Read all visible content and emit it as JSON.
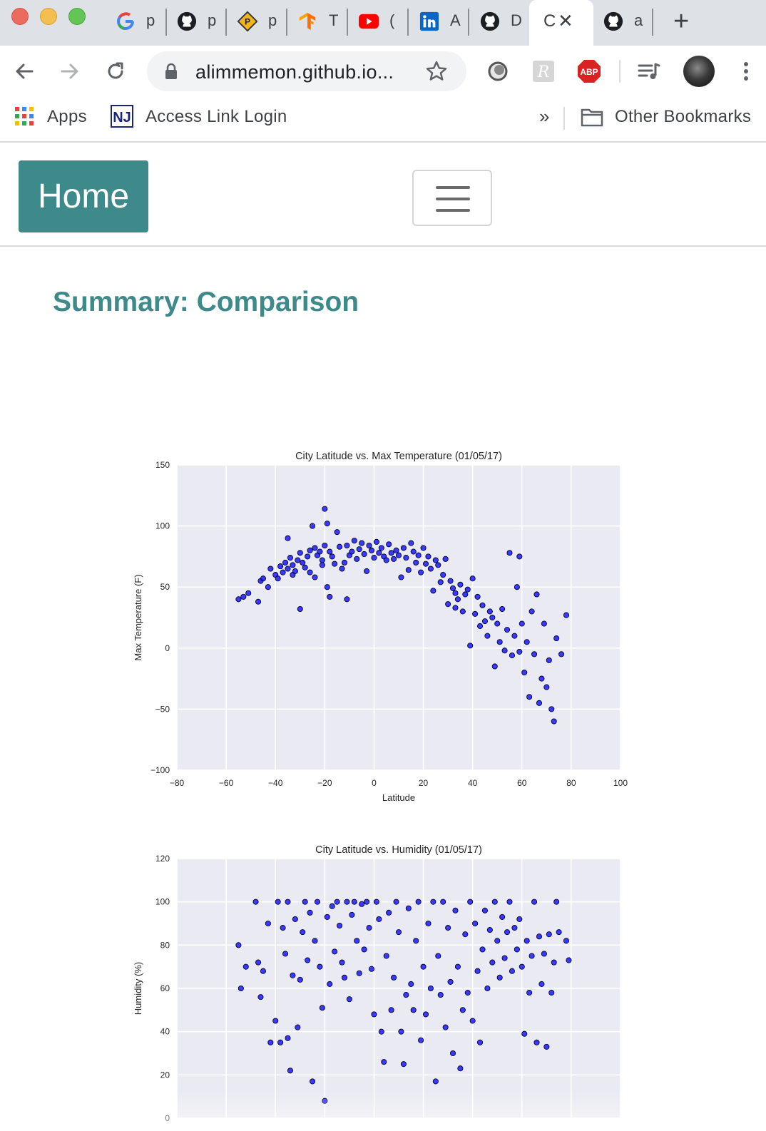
{
  "browser": {
    "tabs": [
      {
        "favicon": "google-icon",
        "title": "p"
      },
      {
        "favicon": "github-icon",
        "title": "p"
      },
      {
        "favicon": "parking-icon",
        "title": "p"
      },
      {
        "favicon": "tensorflow-icon",
        "title": "T"
      },
      {
        "favicon": "youtube-icon",
        "title": "("
      },
      {
        "favicon": "linkedin-icon",
        "title": "A"
      },
      {
        "favicon": "github-icon",
        "title": "D"
      },
      {
        "favicon": "none",
        "title": "C",
        "active": true
      },
      {
        "favicon": "github-icon",
        "title": "a"
      }
    ],
    "close_glyph": "✕",
    "new_tab_glyph": "+",
    "address": "alimmemon.github.io...",
    "extensions": [
      "circle-extension-icon",
      "r-extension-icon",
      "adblock-plus-icon",
      "media-control-icon",
      "profile-avatar",
      "menu-icon"
    ],
    "adblock_label": "ABP",
    "bookmarks": {
      "apps": "Apps",
      "access_link": "Access Link Login",
      "overflow": "»",
      "other": "Other Bookmarks"
    }
  },
  "navbar": {
    "home_label": "Home"
  },
  "page": {
    "title": "Summary: Comparison"
  },
  "colors": {
    "accent": "#3e8a8a",
    "plot_bg": "#eaeaf2",
    "point_fill": "#1a1aff",
    "point_edge": "#000033"
  },
  "chart_data": [
    {
      "type": "scatter",
      "title": "City Latitude vs. Max Temperature (01/05/17)",
      "xlabel": "Latitude",
      "ylabel": "Max Temperature (F)",
      "xlim": [
        -80,
        100
      ],
      "ylim": [
        -100,
        150
      ],
      "xticks": [
        -80,
        -60,
        -40,
        -20,
        0,
        20,
        40,
        60,
        80,
        100
      ],
      "yticks": [
        -100,
        -50,
        0,
        50,
        100,
        150
      ],
      "grid": true,
      "points": [
        [
          -55,
          40
        ],
        [
          -53,
          42
        ],
        [
          -51,
          45
        ],
        [
          -47,
          38
        ],
        [
          -46,
          55
        ],
        [
          -45,
          57
        ],
        [
          -43,
          50
        ],
        [
          -42,
          65
        ],
        [
          -40,
          60
        ],
        [
          -39,
          57
        ],
        [
          -38,
          67
        ],
        [
          -37,
          62
        ],
        [
          -36,
          70
        ],
        [
          -35,
          65
        ],
        [
          -35,
          90
        ],
        [
          -34,
          74
        ],
        [
          -33,
          68
        ],
        [
          -33,
          60
        ],
        [
          -32,
          63
        ],
        [
          -31,
          72
        ],
        [
          -30,
          32
        ],
        [
          -30,
          78
        ],
        [
          -29,
          70
        ],
        [
          -28,
          66
        ],
        [
          -27,
          75
        ],
        [
          -26,
          80
        ],
        [
          -26,
          62
        ],
        [
          -25,
          100
        ],
        [
          -24,
          82
        ],
        [
          -24,
          58
        ],
        [
          -23,
          76
        ],
        [
          -22,
          79
        ],
        [
          -21,
          72
        ],
        [
          -21,
          68
        ],
        [
          -20,
          84
        ],
        [
          -20,
          114
        ],
        [
          -19,
          102
        ],
        [
          -19,
          50
        ],
        [
          -18,
          42
        ],
        [
          -18,
          79
        ],
        [
          -17,
          75
        ],
        [
          -16,
          69
        ],
        [
          -15,
          95
        ],
        [
          -14,
          83
        ],
        [
          -13,
          65
        ],
        [
          -12,
          70
        ],
        [
          -11,
          84
        ],
        [
          -11,
          40
        ],
        [
          -10,
          76
        ],
        [
          -9,
          79
        ],
        [
          -8,
          88
        ],
        [
          -7,
          73
        ],
        [
          -6,
          81
        ],
        [
          -5,
          86
        ],
        [
          -4,
          77
        ],
        [
          -3,
          63
        ],
        [
          -2,
          84
        ],
        [
          -1,
          80
        ],
        [
          0,
          74
        ],
        [
          1,
          87
        ],
        [
          2,
          78
        ],
        [
          3,
          82
        ],
        [
          4,
          75
        ],
        [
          5,
          72
        ],
        [
          6,
          85
        ],
        [
          7,
          78
        ],
        [
          8,
          73
        ],
        [
          9,
          80
        ],
        [
          10,
          76
        ],
        [
          11,
          58
        ],
        [
          12,
          82
        ],
        [
          13,
          74
        ],
        [
          14,
          64
        ],
        [
          15,
          86
        ],
        [
          16,
          79
        ],
        [
          17,
          70
        ],
        [
          18,
          76
        ],
        [
          19,
          62
        ],
        [
          20,
          82
        ],
        [
          21,
          69
        ],
        [
          22,
          75
        ],
        [
          23,
          65
        ],
        [
          24,
          47
        ],
        [
          25,
          72
        ],
        [
          26,
          68
        ],
        [
          27,
          54
        ],
        [
          28,
          60
        ],
        [
          29,
          73
        ],
        [
          30,
          36
        ],
        [
          31,
          55
        ],
        [
          32,
          49
        ],
        [
          33,
          45
        ],
        [
          33,
          33
        ],
        [
          34,
          40
        ],
        [
          35,
          52
        ],
        [
          36,
          30
        ],
        [
          37,
          44
        ],
        [
          38,
          48
        ],
        [
          39,
          2
        ],
        [
          40,
          57
        ],
        [
          41,
          28
        ],
        [
          42,
          42
        ],
        [
          43,
          18
        ],
        [
          44,
          35
        ],
        [
          45,
          22
        ],
        [
          46,
          10
        ],
        [
          47,
          30
        ],
        [
          48,
          25
        ],
        [
          49,
          -15
        ],
        [
          50,
          20
        ],
        [
          51,
          5
        ],
        [
          52,
          32
        ],
        [
          53,
          -2
        ],
        [
          54,
          15
        ],
        [
          55,
          78
        ],
        [
          56,
          -6
        ],
        [
          57,
          10
        ],
        [
          58,
          50
        ],
        [
          59,
          75
        ],
        [
          59,
          -3
        ],
        [
          60,
          20
        ],
        [
          61,
          -20
        ],
        [
          62,
          5
        ],
        [
          63,
          -40
        ],
        [
          64,
          30
        ],
        [
          65,
          -5
        ],
        [
          66,
          44
        ],
        [
          67,
          -45
        ],
        [
          68,
          -25
        ],
        [
          69,
          20
        ],
        [
          70,
          -32
        ],
        [
          71,
          -10
        ],
        [
          72,
          -50
        ],
        [
          73,
          -60
        ],
        [
          74,
          8
        ],
        [
          76,
          -5
        ],
        [
          78,
          27
        ]
      ]
    },
    {
      "type": "scatter",
      "title": "City Latitude vs. Humidity (01/05/17)",
      "xlabel": "",
      "ylabel": "Humidity (%)",
      "xlim": [
        -80,
        100
      ],
      "ylim": [
        0,
        120
      ],
      "yticks": [
        0,
        20,
        40,
        60,
        80,
        100,
        120
      ],
      "grid": true,
      "points": [
        [
          -55,
          80
        ],
        [
          -54,
          60
        ],
        [
          -52,
          70
        ],
        [
          -48,
          100
        ],
        [
          -47,
          72
        ],
        [
          -46,
          56
        ],
        [
          -45,
          68
        ],
        [
          -43,
          90
        ],
        [
          -42,
          35
        ],
        [
          -40,
          45
        ],
        [
          -39,
          100
        ],
        [
          -38,
          35
        ],
        [
          -37,
          88
        ],
        [
          -36,
          76
        ],
        [
          -35,
          37
        ],
        [
          -35,
          100
        ],
        [
          -34,
          22
        ],
        [
          -33,
          66
        ],
        [
          -32,
          92
        ],
        [
          -31,
          42
        ],
        [
          -30,
          64
        ],
        [
          -29,
          86
        ],
        [
          -28,
          100
        ],
        [
          -27,
          73
        ],
        [
          -26,
          95
        ],
        [
          -25,
          17
        ],
        [
          -24,
          82
        ],
        [
          -23,
          100
        ],
        [
          -22,
          70
        ],
        [
          -21,
          51
        ],
        [
          -20,
          8
        ],
        [
          -19,
          93
        ],
        [
          -18,
          62
        ],
        [
          -17,
          98
        ],
        [
          -16,
          77
        ],
        [
          -15,
          100
        ],
        [
          -14,
          89
        ],
        [
          -13,
          72
        ],
        [
          -12,
          65
        ],
        [
          -11,
          100
        ],
        [
          -10,
          55
        ],
        [
          -9,
          94
        ],
        [
          -8,
          100
        ],
        [
          -7,
          82
        ],
        [
          -6,
          67
        ],
        [
          -5,
          99
        ],
        [
          -4,
          78
        ],
        [
          -3,
          100
        ],
        [
          -2,
          88
        ],
        [
          -1,
          69
        ],
        [
          0,
          48
        ],
        [
          1,
          100
        ],
        [
          2,
          92
        ],
        [
          3,
          40
        ],
        [
          4,
          26
        ],
        [
          5,
          75
        ],
        [
          6,
          95
        ],
        [
          7,
          50
        ],
        [
          8,
          65
        ],
        [
          9,
          100
        ],
        [
          10,
          86
        ],
        [
          11,
          40
        ],
        [
          12,
          25
        ],
        [
          13,
          57
        ],
        [
          14,
          97
        ],
        [
          15,
          62
        ],
        [
          16,
          50
        ],
        [
          17,
          82
        ],
        [
          18,
          100
        ],
        [
          19,
          36
        ],
        [
          20,
          70
        ],
        [
          21,
          48
        ],
        [
          22,
          90
        ],
        [
          23,
          60
        ],
        [
          24,
          100
        ],
        [
          25,
          17
        ],
        [
          26,
          75
        ],
        [
          27,
          57
        ],
        [
          28,
          100
        ],
        [
          29,
          42
        ],
        [
          30,
          88
        ],
        [
          31,
          63
        ],
        [
          32,
          30
        ],
        [
          33,
          96
        ],
        [
          34,
          70
        ],
        [
          35,
          23
        ],
        [
          36,
          50
        ],
        [
          37,
          85
        ],
        [
          38,
          58
        ],
        [
          39,
          100
        ],
        [
          40,
          45
        ],
        [
          41,
          90
        ],
        [
          42,
          68
        ],
        [
          43,
          35
        ],
        [
          44,
          78
        ],
        [
          45,
          96
        ],
        [
          46,
          60
        ],
        [
          47,
          87
        ],
        [
          48,
          72
        ],
        [
          49,
          100
        ],
        [
          50,
          82
        ],
        [
          51,
          65
        ],
        [
          52,
          93
        ],
        [
          53,
          74
        ],
        [
          54,
          86
        ],
        [
          55,
          100
        ],
        [
          56,
          68
        ],
        [
          57,
          88
        ],
        [
          58,
          78
        ],
        [
          59,
          92
        ],
        [
          60,
          70
        ],
        [
          61,
          39
        ],
        [
          62,
          82
        ],
        [
          63,
          58
        ],
        [
          64,
          75
        ],
        [
          65,
          100
        ],
        [
          66,
          35
        ],
        [
          67,
          84
        ],
        [
          68,
          62
        ],
        [
          69,
          76
        ],
        [
          70,
          33
        ],
        [
          71,
          85
        ],
        [
          72,
          58
        ],
        [
          73,
          72
        ],
        [
          74,
          100
        ],
        [
          75,
          86
        ],
        [
          78,
          82
        ],
        [
          79,
          73
        ]
      ]
    }
  ]
}
